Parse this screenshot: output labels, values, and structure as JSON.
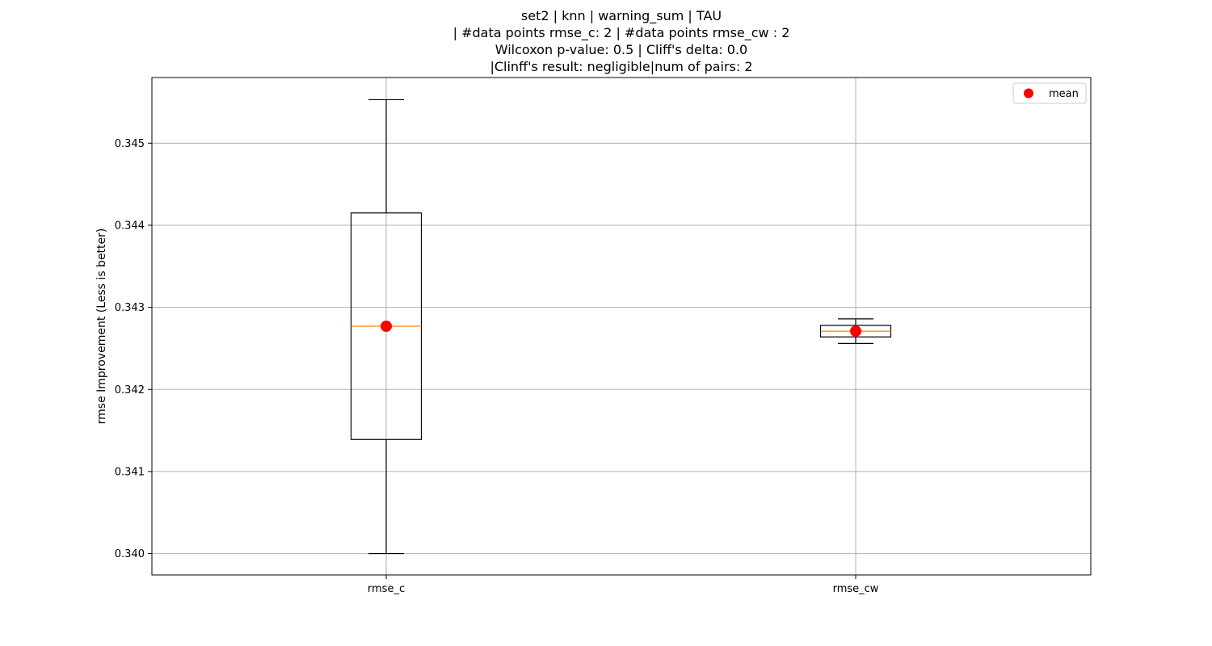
{
  "chart_data": {
    "type": "box",
    "title_lines": [
      "set2 | knn | warning_sum | TAU",
      "| #data points rmse_c: 2 | #data points rmse_cw : 2",
      "Wilcoxon p-value: 0.5 | Cliff's delta: 0.0",
      "|Clinff's result: negligible|num of pairs: 2"
    ],
    "xlabel": "",
    "ylabel": "rmse Improvement (Less is better)",
    "ylim": [
      0.33974,
      0.3458
    ],
    "yticks": [
      0.34,
      0.341,
      0.342,
      0.343,
      0.344,
      0.345
    ],
    "ytick_labels": [
      "0.340",
      "0.341",
      "0.342",
      "0.343",
      "0.344",
      "0.345"
    ],
    "grid": true,
    "categories": [
      "rmse_c",
      "rmse_cw"
    ],
    "boxes": [
      {
        "name": "rmse_c",
        "whisker_low": 0.34,
        "q1": 0.34139,
        "median": 0.34277,
        "q3": 0.34415,
        "whisker_high": 0.34553,
        "mean": 0.34277
      },
      {
        "name": "rmse_cw",
        "whisker_low": 0.34256,
        "q1": 0.34264,
        "median": 0.34271,
        "q3": 0.34278,
        "whisker_high": 0.34286,
        "mean": 0.34271
      }
    ],
    "legend": {
      "position": "top-right",
      "entries": [
        {
          "label": "mean",
          "color": "#ff0000"
        }
      ]
    },
    "colors": {
      "box": "#000000",
      "median": "#ff7f0e",
      "mean": "#ff0000",
      "grid": "#b0b0b0"
    }
  }
}
